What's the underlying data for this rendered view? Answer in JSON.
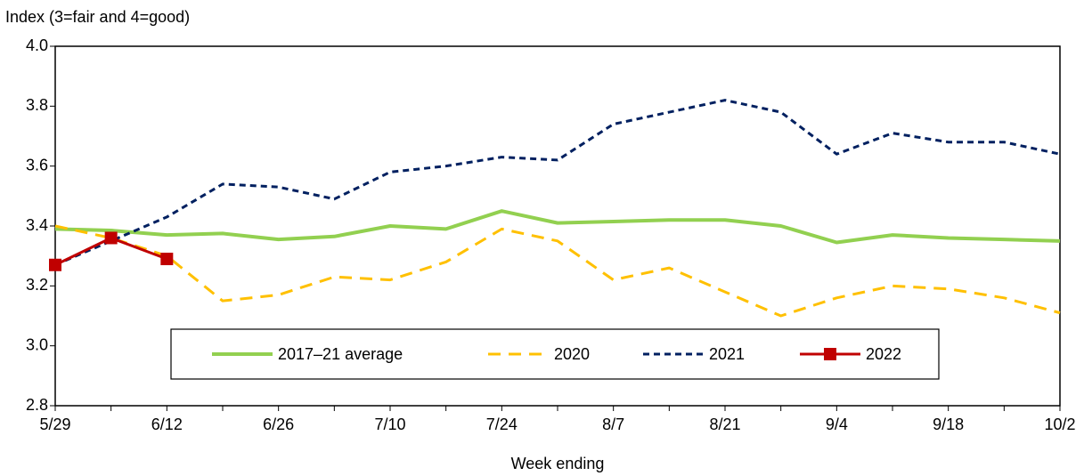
{
  "chart_data": {
    "type": "line",
    "ylabel": "Index (3=fair and 4=good)",
    "xlabel": "Week ending",
    "categories": [
      "5/29",
      null,
      "6/12",
      null,
      "6/26",
      null,
      "7/10",
      null,
      "7/24",
      null,
      "8/7",
      null,
      "8/21",
      null,
      "9/4",
      null,
      "9/18",
      null,
      "10/2"
    ],
    "series": [
      {
        "name": "2017–21 average",
        "color": "#92d050",
        "style": "solid",
        "values": [
          3.39,
          3.385,
          3.37,
          3.375,
          3.355,
          3.365,
          3.4,
          3.39,
          3.45,
          3.41,
          3.415,
          3.42,
          3.42,
          3.4,
          3.345,
          3.37,
          3.36,
          3.355,
          3.35
        ]
      },
      {
        "name": "2020",
        "color": "#ffc000",
        "style": "dashed",
        "values": [
          3.4,
          3.36,
          3.3,
          3.15,
          3.17,
          3.23,
          3.22,
          3.28,
          3.39,
          3.35,
          3.22,
          3.26,
          3.18,
          3.1,
          3.16,
          3.2,
          3.19,
          3.16,
          3.11
        ]
      },
      {
        "name": "2021",
        "color": "#002060",
        "style": "dotted",
        "values": [
          3.27,
          3.35,
          3.43,
          3.54,
          3.53,
          3.49,
          3.58,
          3.6,
          3.63,
          3.62,
          3.74,
          3.78,
          3.82,
          3.78,
          3.64,
          3.71,
          3.68,
          3.68,
          3.64
        ]
      },
      {
        "name": "2022",
        "color": "#c00000",
        "style": "solid",
        "marker": "square",
        "values": [
          3.27,
          3.36,
          3.29,
          null,
          null,
          null,
          null,
          null,
          null,
          null,
          null,
          null,
          null,
          null,
          null,
          null,
          null,
          null,
          null
        ]
      }
    ],
    "ylim": [
      2.8,
      4.0
    ],
    "yticks": [
      2.8,
      {
        "value": 3,
        "label": "3.0"
      },
      3.2,
      3.4,
      3.6,
      3.8,
      {
        "value": 4,
        "label": "4.0"
      }
    ],
    "grid": false
  }
}
